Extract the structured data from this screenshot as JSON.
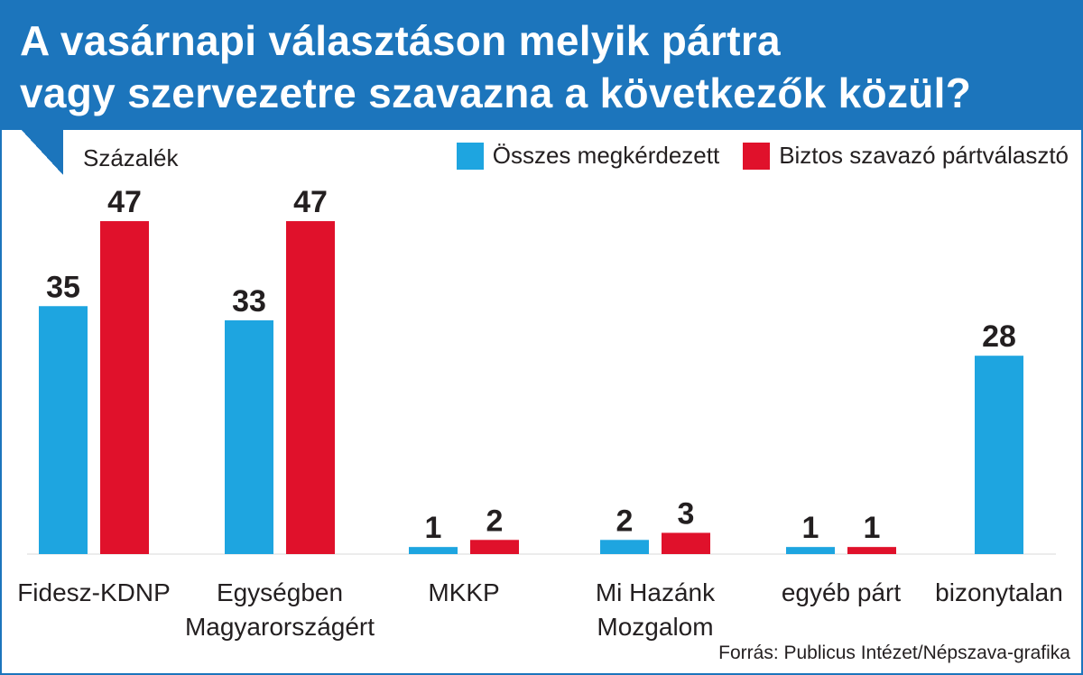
{
  "header": {
    "title_line1": "A vasárnapi választáson melyik pártra",
    "title_line2": "vagy szervezetre szavazna a következők közül?"
  },
  "unit_label": "Százalék",
  "source": "Forrás: Publicus Intézet/Népszava-grafika",
  "colors": {
    "brand": "#1c75bc",
    "series_all": "#1ea5e0",
    "series_sure": "#e0112b",
    "text": "#231f20"
  },
  "chart_data": {
    "type": "bar",
    "unit": "Százalék",
    "categories": [
      [
        "Fidesz-KDNP"
      ],
      [
        "Egységben",
        "Magyarországért"
      ],
      [
        "MKKP"
      ],
      [
        "Mi Hazánk",
        "Mozgalom"
      ],
      [
        "egyéb párt"
      ],
      [
        "bizonytalan"
      ]
    ],
    "series": [
      {
        "name": "Összes megkérdezett",
        "color": "#1ea5e0",
        "values": [
          35,
          33,
          1,
          2,
          1,
          28
        ]
      },
      {
        "name": "Biztos szavazó pártválasztó",
        "color": "#e0112b",
        "values": [
          47,
          47,
          2,
          3,
          1,
          null
        ]
      }
    ],
    "ylim": [
      0,
      50
    ],
    "grid": false,
    "legend": "top-right"
  }
}
